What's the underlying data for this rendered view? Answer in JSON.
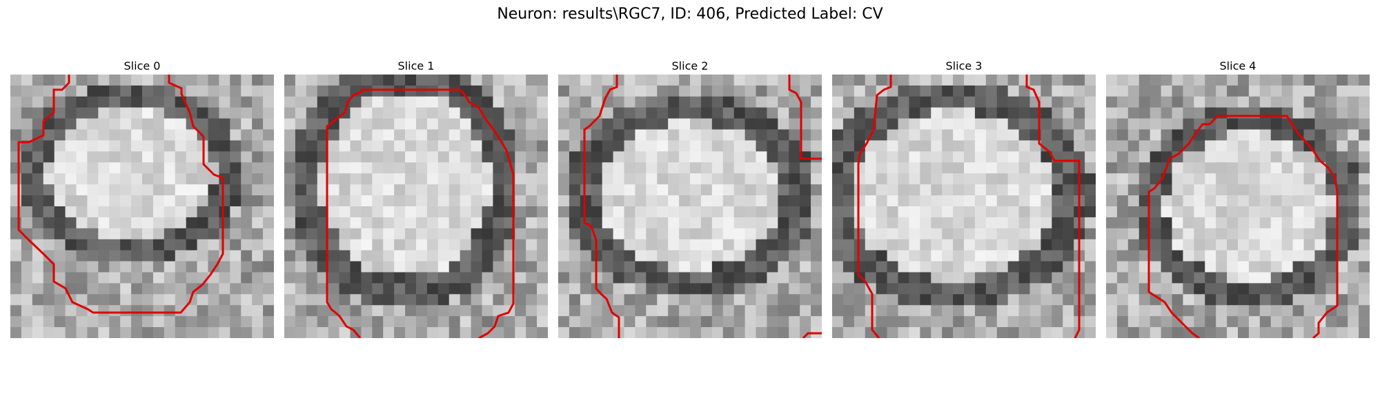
{
  "figure": {
    "title": "Neuron: results\\RGC7, ID: 406, Predicted Label: CV",
    "contour_color": "#e00000",
    "colormap": "gray"
  },
  "panels": [
    {
      "title": "Slice 0"
    },
    {
      "title": "Slice 1"
    },
    {
      "title": "Slice 2"
    },
    {
      "title": "Slice 3"
    },
    {
      "title": "Slice 4"
    }
  ]
}
